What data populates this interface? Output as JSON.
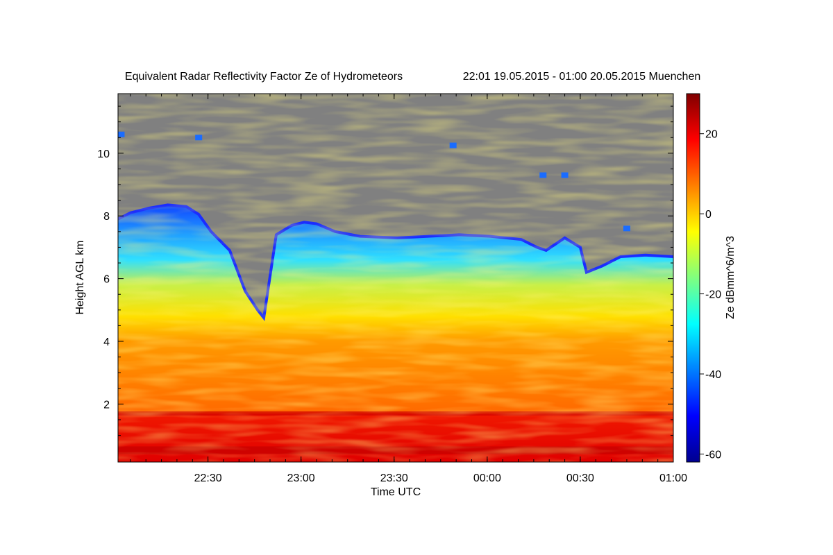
{
  "chart_data": {
    "type": "heatmap",
    "title": "Equivalent Radar Reflectivity Factor Ze of Hydrometeors",
    "subtitle": "22:01 19.05.2015 - 01:00 20.05.2015 Muenchen",
    "xlabel": "Time UTC",
    "ylabel": "Height AGL km",
    "x_ticks": [
      "22:30",
      "23:00",
      "23:30",
      "00:00",
      "00:30",
      "01:00"
    ],
    "x_tick_minutes": [
      29,
      59,
      89,
      119,
      149,
      179
    ],
    "xlim_minutes": [
      0,
      179
    ],
    "y_ticks": [
      2,
      4,
      6,
      8,
      10
    ],
    "ylim": [
      0.15,
      11.9
    ],
    "colorbar": {
      "label": "Ze dBmm^6/m^3",
      "ticks": [
        20,
        0,
        -20,
        -40,
        -60
      ],
      "range": [
        -62,
        30
      ]
    },
    "background_color": "#808080",
    "cloud_top_km": [
      [
        0,
        7.9
      ],
      [
        4,
        8.1
      ],
      [
        10,
        8.25
      ],
      [
        16,
        8.35
      ],
      [
        22,
        8.3
      ],
      [
        26,
        8.05
      ],
      [
        30,
        7.5
      ],
      [
        36,
        6.9
      ],
      [
        41,
        5.6
      ],
      [
        45,
        5.0
      ],
      [
        47,
        4.75
      ],
      [
        51,
        7.4
      ],
      [
        56,
        7.7
      ],
      [
        60,
        7.8
      ],
      [
        64,
        7.75
      ],
      [
        70,
        7.5
      ],
      [
        78,
        7.35
      ],
      [
        90,
        7.3
      ],
      [
        100,
        7.35
      ],
      [
        110,
        7.4
      ],
      [
        120,
        7.35
      ],
      [
        130,
        7.25
      ],
      [
        135,
        7.0
      ],
      [
        138,
        6.9
      ],
      [
        144,
        7.3
      ],
      [
        149,
        7.0
      ],
      [
        151,
        6.2
      ],
      [
        156,
        6.4
      ],
      [
        162,
        6.7
      ],
      [
        170,
        6.75
      ],
      [
        179,
        6.7
      ]
    ],
    "bright_band_km": [
      0.15,
      1.7
    ],
    "isolated_echoes": [
      {
        "t": 1,
        "h": 10.6
      },
      {
        "t": 26,
        "h": 10.5
      },
      {
        "t": 108,
        "h": 10.25
      },
      {
        "t": 137,
        "h": 9.3
      },
      {
        "t": 144,
        "h": 9.3
      },
      {
        "t": 164,
        "h": 7.6
      }
    ]
  }
}
